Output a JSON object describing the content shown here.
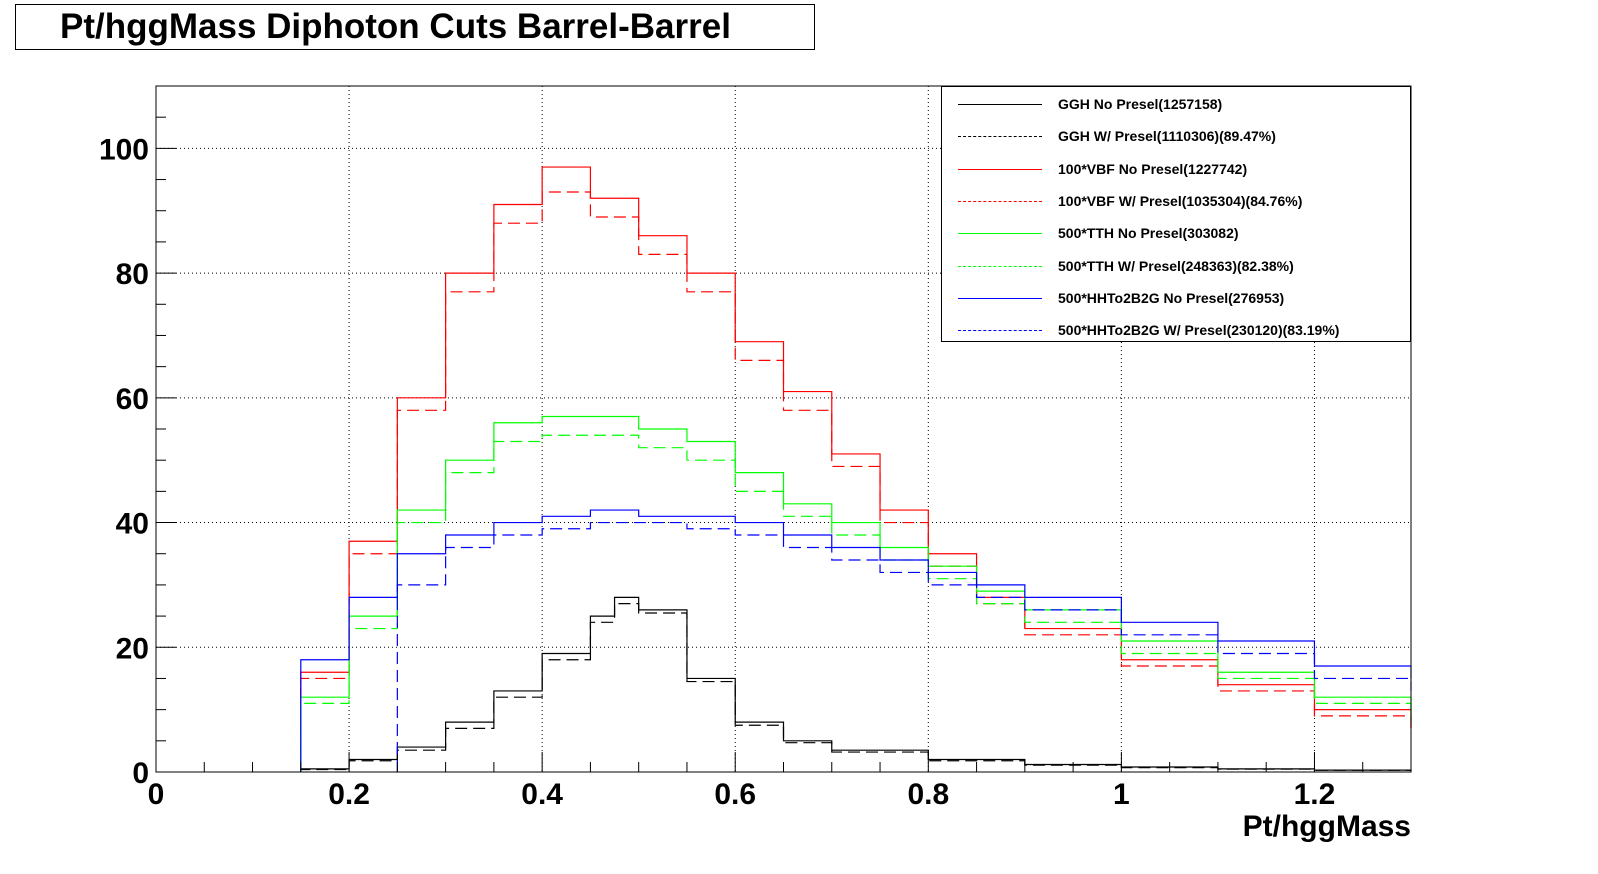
{
  "chart_data": {
    "type": "line",
    "title": "Pt/hggMass Diphoton Cuts Barrel-Barrel",
    "xlabel": "Pt/hggMass",
    "ylabel": "",
    "xlim": [
      0,
      1.3
    ],
    "ylim": [
      0,
      110
    ],
    "x_ticks": [
      "0",
      "0.2",
      "0.4",
      "0.6",
      "0.8",
      "1",
      "1.2"
    ],
    "y_ticks": [
      "0",
      "20",
      "40",
      "60",
      "80",
      "100"
    ],
    "grid": true,
    "legend_position": "top-right",
    "series": [
      {
        "name": "GGH No Presel(1257158)",
        "color": "#000000",
        "dash": "solid",
        "x": [
          0.15,
          0.2,
          0.25,
          0.3,
          0.35,
          0.4,
          0.45,
          0.475,
          0.5,
          0.55,
          0.6,
          0.65,
          0.7,
          0.8,
          0.9,
          1.0,
          1.1,
          1.2,
          1.3
        ],
        "y": [
          0.5,
          2,
          4,
          8,
          13,
          19,
          25,
          28,
          26,
          15,
          8,
          5,
          3.5,
          2,
          1.2,
          0.8,
          0.5,
          0.3,
          0.2
        ]
      },
      {
        "name": "GGH W/ Presel(1110306)(89.47%)",
        "color": "#000000",
        "dash": "dashed",
        "x": [
          0.15,
          0.2,
          0.25,
          0.3,
          0.35,
          0.4,
          0.45,
          0.475,
          0.5,
          0.55,
          0.6,
          0.65,
          0.7,
          0.8,
          0.9,
          1.0,
          1.1,
          1.2,
          1.3
        ],
        "y": [
          0.4,
          1.8,
          3.5,
          7,
          12,
          18,
          24,
          27,
          25.5,
          14.5,
          7.5,
          4.7,
          3.2,
          1.8,
          1.1,
          0.7,
          0.45,
          0.28,
          0.18
        ]
      },
      {
        "name": "100*VBF No Presel(1227742)",
        "color": "#ff0000",
        "dash": "solid",
        "x": [
          0.15,
          0.2,
          0.25,
          0.3,
          0.35,
          0.4,
          0.45,
          0.5,
          0.55,
          0.6,
          0.65,
          0.7,
          0.75,
          0.8,
          0.85,
          0.9,
          1.0,
          1.1,
          1.2,
          1.3
        ],
        "y": [
          16,
          37,
          60,
          80,
          91,
          97,
          92,
          86,
          80,
          69,
          61,
          51,
          42,
          35,
          28,
          23,
          18,
          14,
          10,
          7
        ]
      },
      {
        "name": "100*VBF W/ Presel(1035304)(84.76%)",
        "color": "#ff0000",
        "dash": "dashed",
        "x": [
          0.15,
          0.2,
          0.25,
          0.3,
          0.35,
          0.4,
          0.45,
          0.5,
          0.55,
          0.6,
          0.65,
          0.7,
          0.75,
          0.8,
          0.85,
          0.9,
          1.0,
          1.1,
          1.2,
          1.3
        ],
        "y": [
          15,
          35,
          58,
          77,
          88,
          93,
          89,
          83,
          77,
          66,
          58,
          49,
          40,
          33,
          27,
          22,
          17,
          13,
          9,
          6
        ]
      },
      {
        "name": "500*TTH No Presel(303082)",
        "color": "#00ff00",
        "dash": "solid",
        "x": [
          0.15,
          0.2,
          0.25,
          0.3,
          0.35,
          0.4,
          0.45,
          0.5,
          0.55,
          0.6,
          0.65,
          0.7,
          0.75,
          0.8,
          0.85,
          0.9,
          1.0,
          1.1,
          1.2,
          1.3
        ],
        "y": [
          12,
          25,
          42,
          50,
          56,
          57,
          57,
          55,
          53,
          48,
          43,
          40,
          36,
          33,
          29,
          26,
          21,
          16,
          12,
          9
        ]
      },
      {
        "name": "500*TTH W/ Presel(248363)(82.38%)",
        "color": "#00ff00",
        "dash": "dashed",
        "x": [
          0.15,
          0.2,
          0.25,
          0.3,
          0.35,
          0.4,
          0.45,
          0.5,
          0.55,
          0.6,
          0.65,
          0.7,
          0.75,
          0.8,
          0.85,
          0.9,
          1.0,
          1.1,
          1.2,
          1.3
        ],
        "y": [
          11,
          23,
          40,
          48,
          53,
          54,
          54,
          52,
          50,
          45,
          41,
          38,
          34,
          31,
          27,
          24,
          19,
          15,
          11,
          8
        ]
      },
      {
        "name": "500*HHTo2B2G No Presel(276953)",
        "color": "#0000ff",
        "dash": "solid",
        "x": [
          0.15,
          0.2,
          0.25,
          0.3,
          0.35,
          0.4,
          0.45,
          0.5,
          0.55,
          0.6,
          0.65,
          0.7,
          0.75,
          0.8,
          0.85,
          0.9,
          1.0,
          1.1,
          1.2,
          1.3
        ],
        "y": [
          18,
          28,
          35,
          38,
          40,
          41,
          42,
          41,
          41,
          40,
          38,
          36,
          34,
          32,
          30,
          28,
          24,
          21,
          17,
          15
        ]
      },
      {
        "name": "500*HHTo2B2G W/ Presel(230120)(83.19%)",
        "color": "#0000ff",
        "dash": "dashed",
        "x": [
          0.25,
          0.3,
          0.35,
          0.4,
          0.45,
          0.5,
          0.55,
          0.6,
          0.65,
          0.7,
          0.75,
          0.8,
          0.85,
          0.9,
          1.0,
          1.1,
          1.2,
          1.3
        ],
        "y": [
          30,
          36,
          38,
          39,
          40,
          40,
          39,
          38,
          36,
          34,
          32,
          30,
          28,
          26,
          22,
          19,
          15,
          13
        ]
      }
    ]
  }
}
